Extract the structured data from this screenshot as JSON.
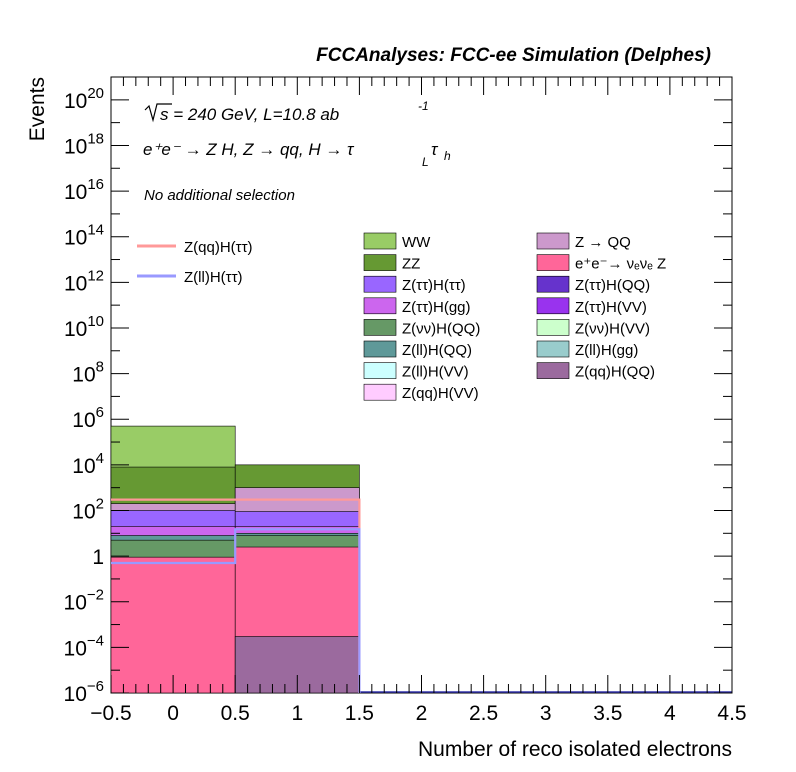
{
  "chart_data": {
    "type": "bar",
    "stacked": true,
    "title": "FCCAnalyses: FCC-ee Simulation (Delphes)",
    "xlabel": "Number of reco isolated electrons",
    "ylabel": "Events",
    "xlim": [
      -0.5,
      4.5
    ],
    "ylim": [
      1e-06,
      1e+21
    ],
    "yscale": "log",
    "grid": false,
    "legend_position": "top",
    "x_ticks": [
      "−0.5",
      "0",
      "0.5",
      "1",
      "1.5",
      "2",
      "2.5",
      "3",
      "3.5",
      "4",
      "4.5"
    ],
    "y_ticks": [
      {
        "base": "10",
        "exp": "20"
      },
      {
        "base": "10",
        "exp": "18"
      },
      {
        "base": "10",
        "exp": "16"
      },
      {
        "base": "10",
        "exp": "14"
      },
      {
        "base": "10",
        "exp": "12"
      },
      {
        "base": "10",
        "exp": "10"
      },
      {
        "base": "10",
        "exp": "8"
      },
      {
        "base": "10",
        "exp": "6"
      },
      {
        "base": "10",
        "exp": "4"
      },
      {
        "base": "10",
        "exp": "2"
      },
      {
        "base": "1",
        "exp": ""
      },
      {
        "base": "10",
        "exp": "−2"
      },
      {
        "base": "10",
        "exp": "−4"
      },
      {
        "base": "10",
        "exp": "−6"
      }
    ],
    "annotations": {
      "sqrt_s": "s = 240 GeV, L=10.8 ab",
      "lumi_exp": "-1",
      "process": "e⁺e⁻ → Z H, Z  → qq, H  → τ ",
      "tau_sub1": "L",
      "tau_mid": "τ",
      "tau_sub2": "h",
      "selection": "No additional selection"
    },
    "bins": [
      {
        "low": -0.5,
        "high": 0.5
      },
      {
        "low": 0.5,
        "high": 1.5
      }
    ],
    "stack_cumulative_tops": [
      {
        "name": "Z(qq)H(QQ)",
        "color": "#9b6a9e",
        "values": [
          0,
          0.0003
        ]
      },
      {
        "name": "e⁺e⁻→ νₑνₑ Z",
        "color": "#ff6699",
        "values": [
          0.9,
          2.5
        ]
      },
      {
        "name": "Z(νν)H(QQ)",
        "color": "#669966",
        "values": [
          5,
          8
        ]
      },
      {
        "name": "Z(ll)H(QQ)",
        "color": "#5f9999",
        "values": [
          8,
          10
        ]
      },
      {
        "name": "Z(ττ)H(gg)",
        "color": "#cc66ee",
        "values": [
          20,
          20
        ]
      },
      {
        "name": "Z(ττ)H(ττ)",
        "color": "#9966ff",
        "values": [
          100,
          90
        ]
      },
      {
        "name": "Z → QQ",
        "color": "#cc99cc",
        "values": [
          200,
          1000
        ]
      },
      {
        "name": "ZZ",
        "color": "#669933",
        "values": [
          8000,
          10000
        ]
      },
      {
        "name": "WW",
        "color": "#99cc66",
        "values": [
          500000,
          0
        ]
      }
    ],
    "overlay_lines": [
      {
        "name": "Z(qq)H(ττ)",
        "color": "#ff9999",
        "values": [
          300,
          300
        ]
      },
      {
        "name": "Z(ll)H(ττ)",
        "color": "#9999ff",
        "values": [
          0.5,
          15
        ]
      }
    ],
    "legend_left": [
      {
        "name": "Z(qq)H(ττ)",
        "color": "#ff9999",
        "kind": "line"
      },
      {
        "name": "Z(ll)H(ττ)",
        "color": "#9999ff",
        "kind": "line"
      }
    ],
    "legend_col1": [
      {
        "name": "WW",
        "color": "#99cc66"
      },
      {
        "name": "ZZ",
        "color": "#669933"
      },
      {
        "name": "Z(ττ)H(ττ)",
        "color": "#9966ff"
      },
      {
        "name": "Z(ττ)H(gg)",
        "color": "#cc66ee"
      },
      {
        "name": "Z(νν)H(QQ)",
        "color": "#669966"
      },
      {
        "name": "Z(ll)H(QQ)",
        "color": "#5f9999"
      },
      {
        "name": "Z(ll)H(VV)",
        "color": "#ccffff"
      },
      {
        "name": "Z(qq)H(VV)",
        "color": "#ffccff"
      }
    ],
    "legend_col2": [
      {
        "name": "Z → QQ",
        "color": "#cc99cc"
      },
      {
        "name": "e⁺e⁻→ νₑνₑ Z",
        "color": "#ff6699"
      },
      {
        "name": "Z(ττ)H(QQ)",
        "color": "#6633cc"
      },
      {
        "name": "Z(ττ)H(VV)",
        "color": "#9933ee"
      },
      {
        "name": "Z(νν)H(VV)",
        "color": "#ccffcc"
      },
      {
        "name": "Z(ll)H(gg)",
        "color": "#99cccc"
      },
      {
        "name": "Z(qq)H(QQ)",
        "color": "#9b6a9e"
      }
    ]
  }
}
